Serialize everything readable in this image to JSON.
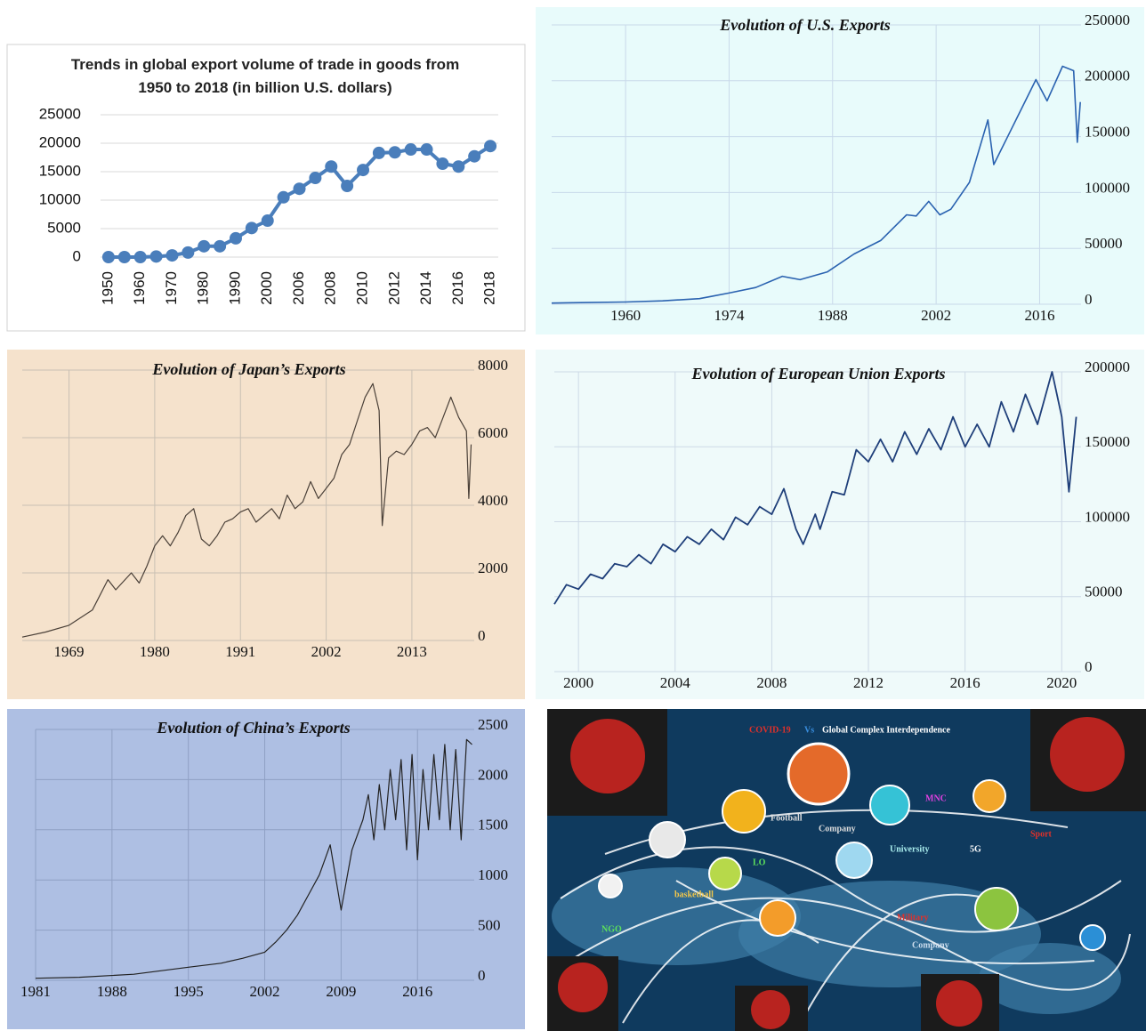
{
  "chart_data": [
    {
      "type": "line",
      "title": "Trends in global export volume of trade in goods from 1950 to 2018 (in billion U.S. dollars)",
      "categories": [
        "1950",
        null,
        "1960",
        null,
        "1970",
        null,
        "1980",
        null,
        "1990",
        null,
        "2000",
        null,
        "2006",
        null,
        "2008",
        null,
        "2010",
        null,
        "2012",
        null,
        "2014",
        null,
        "2016",
        null,
        "2018"
      ],
      "values": [
        0,
        0,
        0,
        100,
        300,
        800,
        1900,
        1900,
        3300,
        5100,
        6400,
        10500,
        12000,
        13900,
        15900,
        12500,
        15300,
        18300,
        18400,
        18900,
        18900,
        16400,
        15900,
        17700,
        19500
      ],
      "color": "#4a7ebb",
      "markers": true,
      "ylim": [
        0,
        25000
      ],
      "yticks": [
        0,
        5000,
        10000,
        15000,
        20000,
        25000
      ],
      "grid": true
    },
    {
      "type": "line",
      "title": "Evolution of U.S. Exports",
      "x": [
        1950,
        1955,
        1960,
        1965,
        1970,
        1971.6,
        1974,
        1977.6,
        1981.2,
        1983.6,
        1987.3,
        1990.9,
        1994.5,
        1998,
        1999.3,
        2001,
        2002.5,
        2004,
        2006.5,
        2009,
        2009.8,
        2011.9,
        2015.5,
        2017,
        2019.1,
        2020.6,
        2021.1,
        2021.5
      ],
      "values": [
        1000,
        1500,
        2000,
        3000,
        5000,
        7000,
        10000,
        15000,
        25000,
        22000,
        29000,
        45000,
        57000,
        80000,
        79000,
        92000,
        80000,
        85000,
        109000,
        165000,
        125000,
        153000,
        201000,
        182000,
        213000,
        209000,
        145000,
        181000
      ],
      "color": "#2a62b0",
      "xlim": [
        1950,
        2021.6
      ],
      "xticks": [
        1960,
        1974,
        1988,
        2002,
        2016
      ],
      "ylim": [
        0,
        250000
      ],
      "yticks": [
        0,
        50000,
        100000,
        150000,
        200000,
        250000
      ],
      "grid": true
    },
    {
      "type": "line",
      "title": "Evolution of Japan’s Exports",
      "x": [
        1963,
        1966,
        1969,
        1972,
        1974,
        1975,
        1977,
        1978,
        1979,
        1980,
        1981,
        1982,
        1983,
        1984,
        1985,
        1986,
        1987,
        1988,
        1989,
        1990,
        1991,
        1992,
        1993,
        1994,
        1995,
        1996,
        1997,
        1998,
        1999,
        2000,
        2001,
        2002,
        2003,
        2004,
        2005,
        2006,
        2007,
        2008,
        2008.8,
        2009.2,
        2010,
        2011,
        2012,
        2013,
        2014,
        2015,
        2016,
        2017,
        2018,
        2019,
        2020,
        2020.3,
        2020.6
      ],
      "values": [
        100,
        250,
        450,
        900,
        1800,
        1500,
        2000,
        1700,
        2200,
        2800,
        3100,
        2800,
        3200,
        3700,
        3900,
        3000,
        2800,
        3100,
        3500,
        3600,
        3800,
        3900,
        3500,
        3700,
        3900,
        3600,
        4300,
        3900,
        4100,
        4700,
        4200,
        4500,
        4800,
        5500,
        5800,
        6500,
        7200,
        7600,
        6800,
        3400,
        5400,
        5600,
        5500,
        5800,
        6200,
        6300,
        6000,
        6600,
        7200,
        6600,
        6200,
        4200,
        5800
      ],
      "color": "#4a4038",
      "xlim": [
        1963,
        2021
      ],
      "xticks": [
        1969,
        1980,
        1991,
        2002,
        2013
      ],
      "ylim": [
        0,
        8000
      ],
      "yticks": [
        0,
        2000,
        4000,
        6000,
        8000
      ],
      "grid": true
    },
    {
      "type": "line",
      "title": "Evolution of European Union Exports",
      "x": [
        1999,
        1999.5,
        2000,
        2000.5,
        2001,
        2001.5,
        2002,
        2002.5,
        2003,
        2003.5,
        2004,
        2004.5,
        2005,
        2005.5,
        2006,
        2006.5,
        2007,
        2007.5,
        2008,
        2008.5,
        2009,
        2009.3,
        2009.8,
        2010,
        2010.5,
        2011,
        2011.5,
        2012,
        2012.5,
        2013,
        2013.5,
        2014,
        2014.5,
        2015,
        2015.5,
        2016,
        2016.5,
        2017,
        2017.5,
        2018,
        2018.5,
        2019,
        2019.6,
        2020,
        2020.3,
        2020.6
      ],
      "values": [
        45000,
        58000,
        55000,
        65000,
        62000,
        72000,
        70000,
        78000,
        72000,
        85000,
        80000,
        90000,
        85000,
        95000,
        88000,
        103000,
        98000,
        110000,
        105000,
        122000,
        95000,
        85000,
        105000,
        95000,
        120000,
        118000,
        148000,
        140000,
        155000,
        140000,
        160000,
        145000,
        162000,
        148000,
        170000,
        150000,
        165000,
        150000,
        180000,
        160000,
        185000,
        165000,
        200000,
        170000,
        120000,
        170000
      ],
      "color": "#1f3f7a",
      "xlim": [
        1999,
        2020.8
      ],
      "xticks": [
        2000,
        2004,
        2008,
        2012,
        2016,
        2020
      ],
      "ylim": [
        0,
        200000
      ],
      "yticks": [
        0,
        50000,
        100000,
        150000,
        200000
      ],
      "grid": true
    },
    {
      "type": "line",
      "title": "Evolution of China’s Exports",
      "x": [
        1981,
        1985,
        1990,
        1995,
        1998,
        2000,
        2002,
        2003,
        2004,
        2005,
        2006,
        2007,
        2008,
        2009,
        2009.5,
        2010,
        2011,
        2011.5,
        2012,
        2012.5,
        2013,
        2013.5,
        2014,
        2014.5,
        2015,
        2015.5,
        2016,
        2016.5,
        2017,
        2017.5,
        2018,
        2018.5,
        2019,
        2019.5,
        2020,
        2020.5,
        2021
      ],
      "values": [
        20,
        30,
        60,
        130,
        170,
        220,
        280,
        380,
        500,
        650,
        850,
        1050,
        1350,
        700,
        1000,
        1300,
        1600,
        1850,
        1400,
        1950,
        1500,
        2100,
        1600,
        2200,
        1300,
        2250,
        1200,
        2100,
        1500,
        2250,
        1600,
        2350,
        1500,
        2300,
        1400,
        2400,
        2350
      ],
      "color": "#222222",
      "xlim": [
        1981,
        2021.2
      ],
      "xticks": [
        1981,
        1988,
        1995,
        2002,
        2009,
        2016
      ],
      "ylim": [
        0,
        2500
      ],
      "yticks": [
        0,
        500,
        1000,
        1500,
        2000,
        2500
      ],
      "grid": true
    }
  ],
  "illustration": {
    "title": [
      "COVID-19",
      "Vs",
      "Global Complex Interdependence"
    ],
    "labels": [
      "Football",
      "Company",
      "University",
      "5G",
      "MNC",
      "Sport",
      "basketball",
      "LO",
      "NGO",
      "Military",
      "Company"
    ]
  }
}
